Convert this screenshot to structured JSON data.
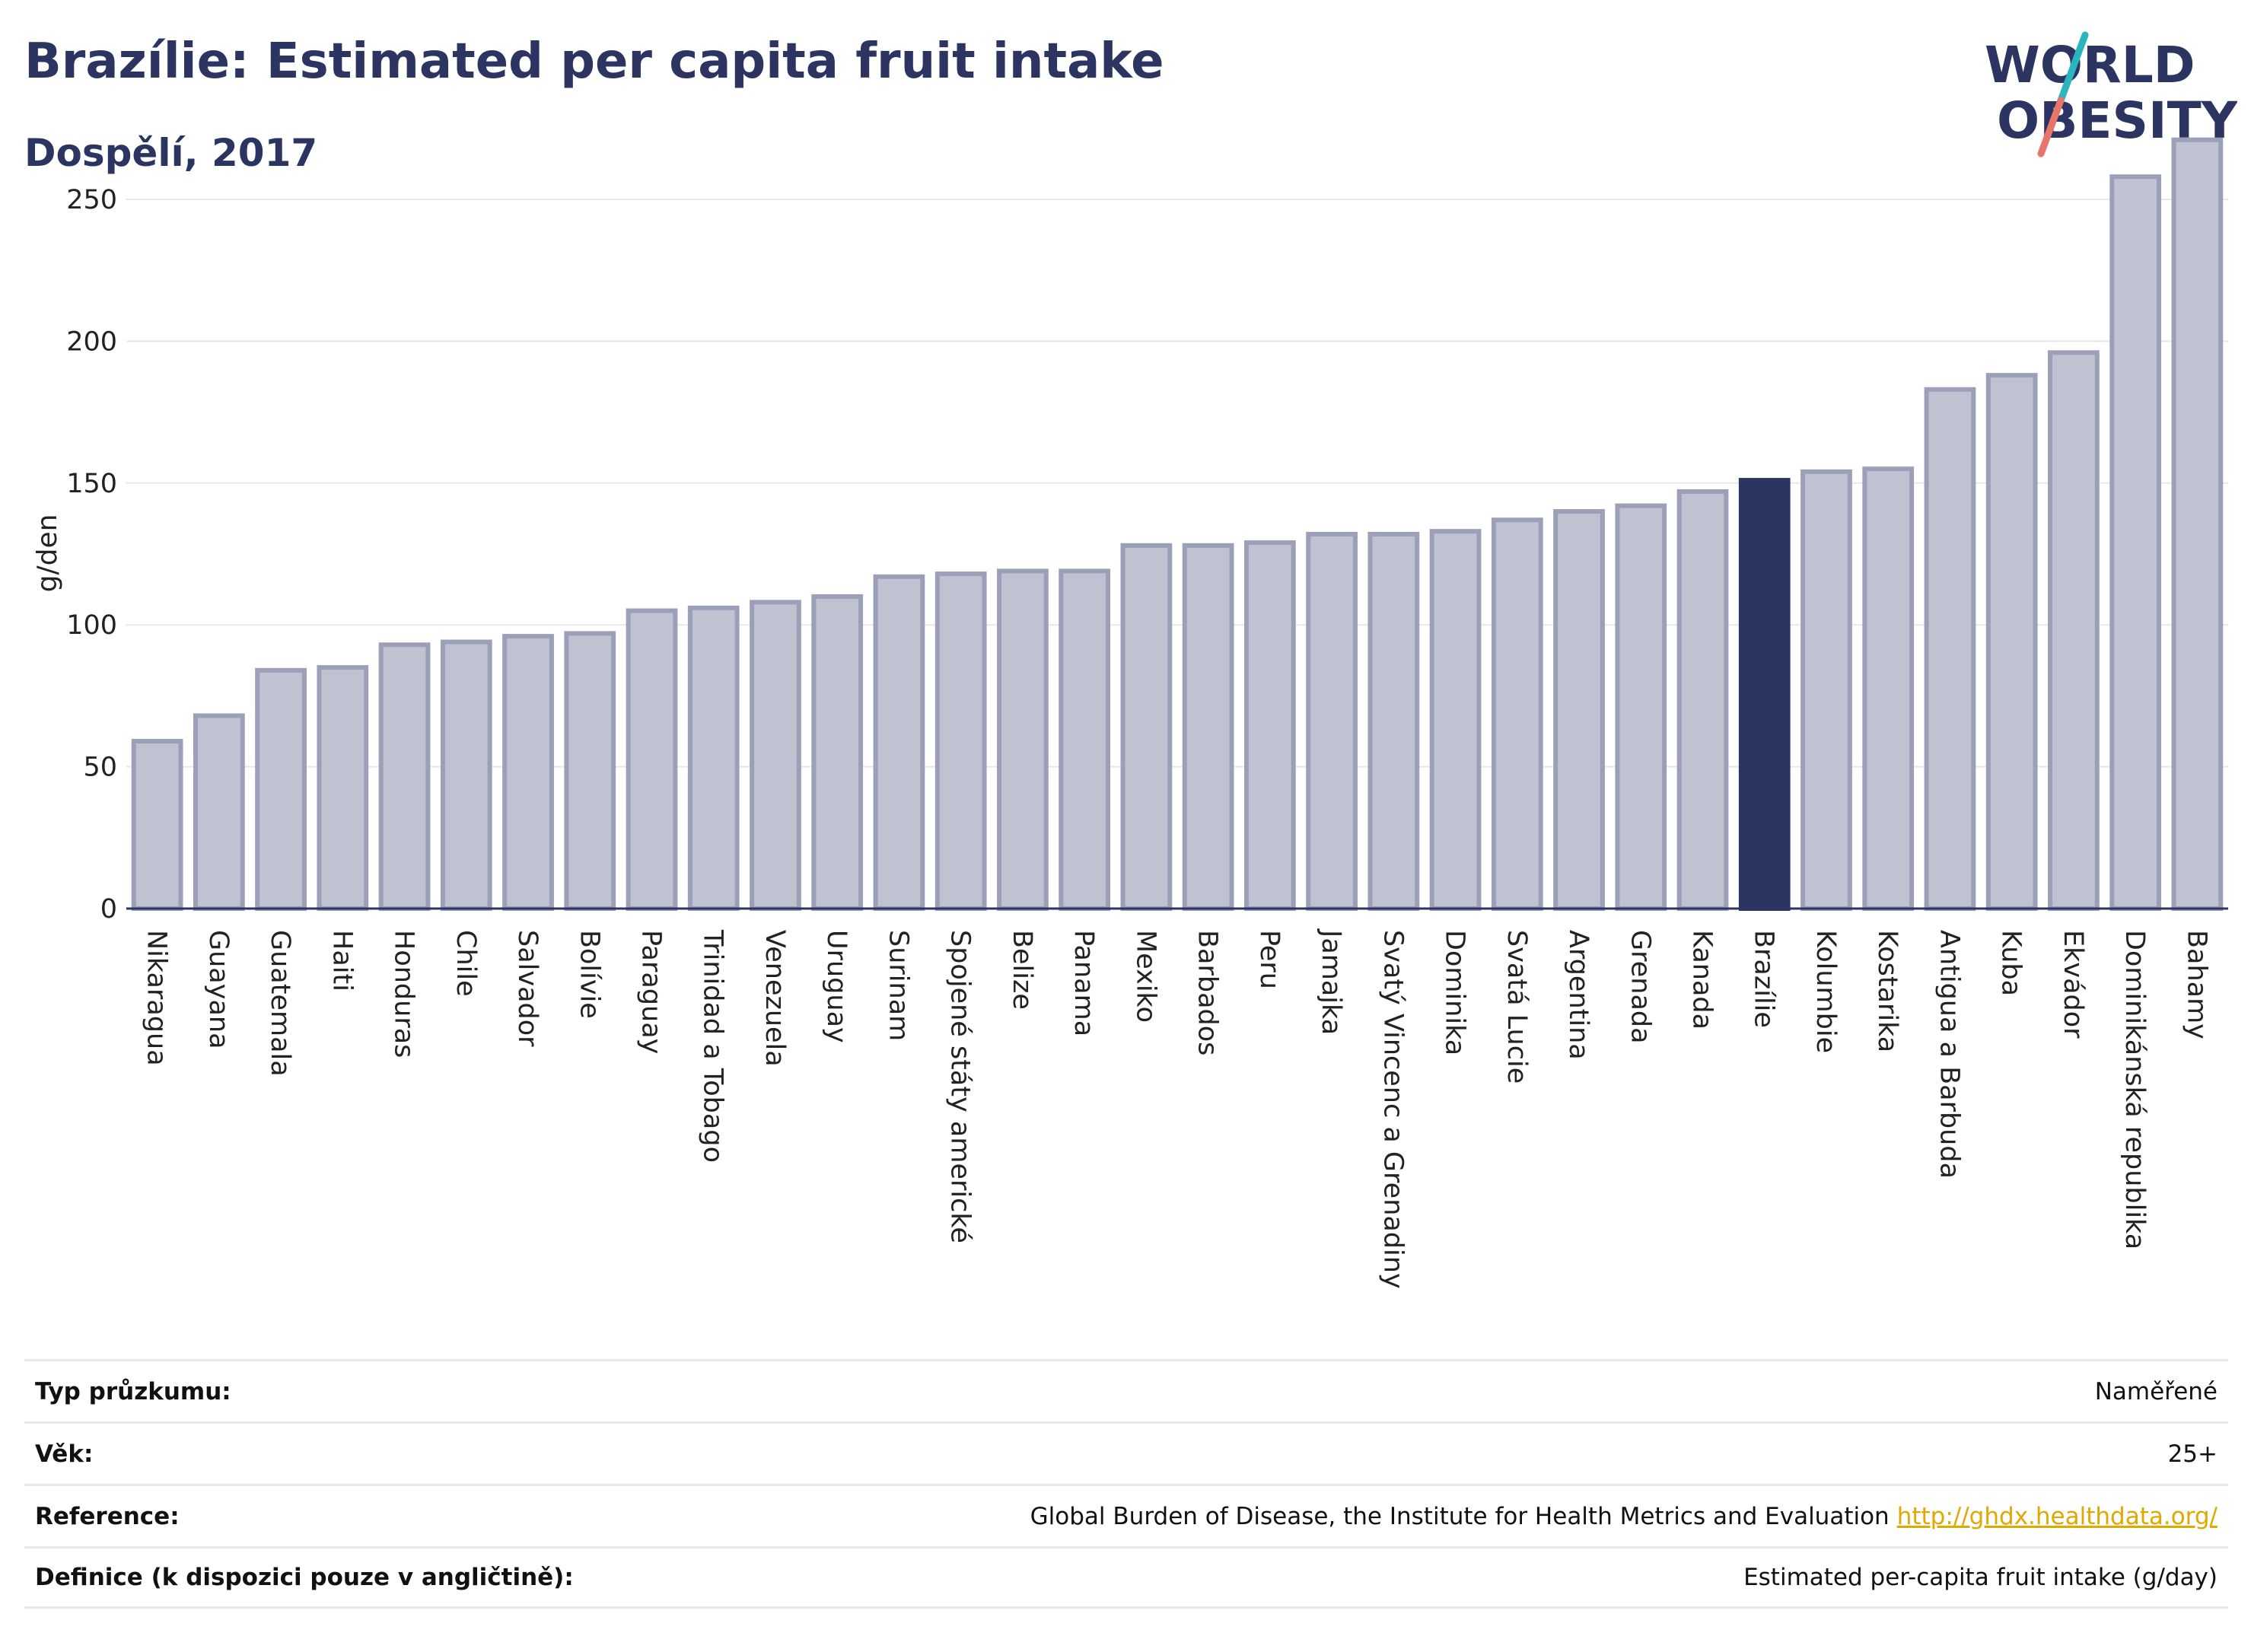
{
  "title": "Brazílie: Estimated per capita fruit intake",
  "subtitle": "Dospělí, 2017",
  "logo": {
    "line1": "WORLD",
    "line2": "OBESITY",
    "colors": {
      "text": "#2c3461",
      "slash_teal": "#2bb5c0",
      "slash_coral": "#e8756a"
    }
  },
  "colors": {
    "bar": "#bfc2d0",
    "bar_border": "#9b9fb8",
    "highlight": "#2c3461",
    "grid": "#e6e8ee",
    "axis": "#2c3461"
  },
  "chart_data": {
    "type": "bar",
    "ylabel": "g/den",
    "xlabel": "",
    "ylim": [
      0,
      272
    ],
    "yticks": [
      0,
      50,
      100,
      150,
      200,
      250
    ],
    "grid": true,
    "highlight": "Brazílie",
    "categories": [
      "Nikaragua",
      "Guayana",
      "Guatemala",
      "Haiti",
      "Honduras",
      "Chile",
      "Salvador",
      "Bolívie",
      "Paraguay",
      "Trinidad a Tobago",
      "Venezuela",
      "Uruguay",
      "Surinam",
      "Spojené státy americké",
      "Belize",
      "Panama",
      "Mexiko",
      "Barbados",
      "Peru",
      "Jamajka",
      "Svatý Vincenc a Grenadiny",
      "Dominika",
      "Svatá Lucie",
      "Argentina",
      "Grenada",
      "Kanada",
      "Brazílie",
      "Kolumbie",
      "Kostarika",
      "Antigua a Barbuda",
      "Kuba",
      "Ekvádor",
      "Dominikánská republika",
      "Bahamy"
    ],
    "values": [
      59,
      68,
      84,
      85,
      93,
      94,
      96,
      97,
      105,
      106,
      108,
      110,
      117,
      118,
      119,
      119,
      128,
      128,
      129,
      132,
      132,
      133,
      137,
      140,
      142,
      147,
      151,
      154,
      155,
      183,
      188,
      196,
      258,
      271
    ]
  },
  "info": [
    {
      "key": "Typ průzkumu:",
      "value": "Naměřené"
    },
    {
      "key": "Věk:",
      "value": "25+"
    },
    {
      "key": "Reference:",
      "value": "Global Burden of Disease, the Institute for Health Metrics and Evaluation",
      "link": "http://ghdx.healthdata.org/"
    },
    {
      "key": "Definice (k dispozici pouze v angličtině):",
      "value": "Estimated per-capita fruit intake (g/day)"
    }
  ]
}
